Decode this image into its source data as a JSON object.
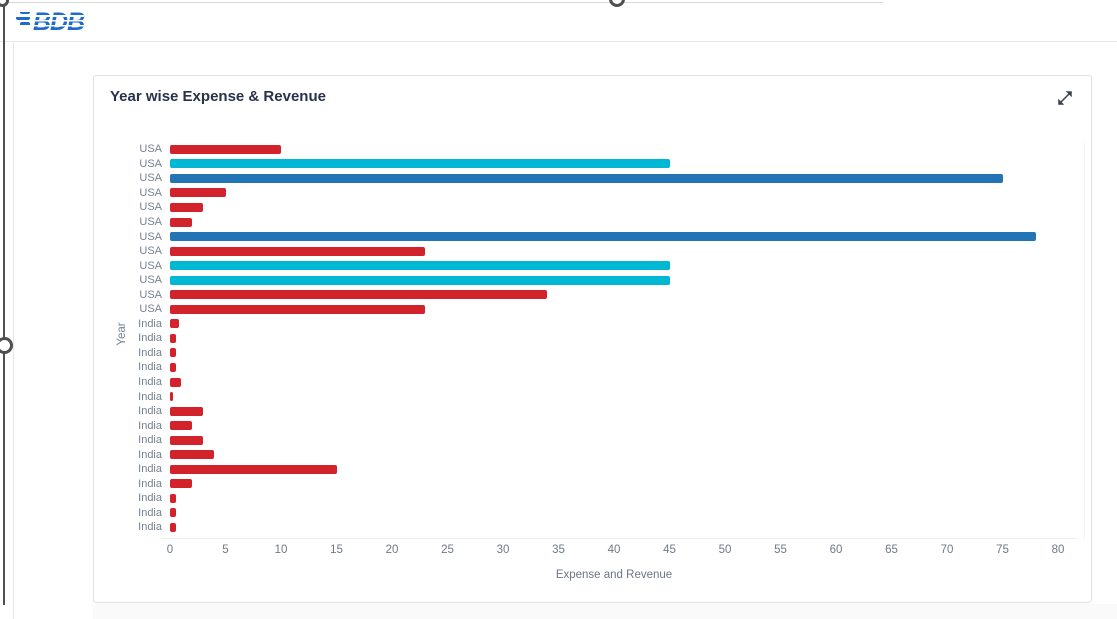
{
  "header": {
    "logo_text": "BDB"
  },
  "card": {
    "title": "Year wise Expense & Revenue",
    "expand_icon": "expand-arrows-icon"
  },
  "chart_data": {
    "type": "bar",
    "orientation": "horizontal",
    "title": "Year wise Expense & Revenue",
    "xlabel": "Expense and Revenue",
    "ylabel": "Year",
    "xlim": [
      0,
      80
    ],
    "xticks": [
      0,
      5,
      10,
      15,
      20,
      25,
      30,
      35,
      40,
      45,
      50,
      55,
      60,
      65,
      70,
      75,
      80
    ],
    "grid": false,
    "legend_position": "none",
    "colors": {
      "red": "#d2232d",
      "cyan": "#00b8d4",
      "blue": "#2374b5"
    },
    "points": [
      {
        "category": "USA",
        "value": 10,
        "color": "red"
      },
      {
        "category": "USA",
        "value": 45,
        "color": "cyan"
      },
      {
        "category": "USA",
        "value": 75,
        "color": "blue"
      },
      {
        "category": "USA",
        "value": 5,
        "color": "red"
      },
      {
        "category": "USA",
        "value": 3,
        "color": "red"
      },
      {
        "category": "USA",
        "value": 2,
        "color": "red"
      },
      {
        "category": "USA",
        "value": 78,
        "color": "blue"
      },
      {
        "category": "USA",
        "value": 23,
        "color": "red"
      },
      {
        "category": "USA",
        "value": 45,
        "color": "cyan"
      },
      {
        "category": "USA",
        "value": 45,
        "color": "cyan"
      },
      {
        "category": "USA",
        "value": 34,
        "color": "red"
      },
      {
        "category": "USA",
        "value": 23,
        "color": "red"
      },
      {
        "category": "India",
        "value": 0.8,
        "color": "red"
      },
      {
        "category": "India",
        "value": 0.5,
        "color": "red"
      },
      {
        "category": "India",
        "value": 0.5,
        "color": "red"
      },
      {
        "category": "India",
        "value": 0.5,
        "color": "red"
      },
      {
        "category": "India",
        "value": 1,
        "color": "red"
      },
      {
        "category": "India",
        "value": 0.3,
        "color": "red"
      },
      {
        "category": "India",
        "value": 3,
        "color": "red"
      },
      {
        "category": "India",
        "value": 2,
        "color": "red"
      },
      {
        "category": "India",
        "value": 3,
        "color": "red"
      },
      {
        "category": "India",
        "value": 4,
        "color": "red"
      },
      {
        "category": "India",
        "value": 15,
        "color": "red"
      },
      {
        "category": "India",
        "value": 2,
        "color": "red"
      },
      {
        "category": "India",
        "value": 0.5,
        "color": "red"
      },
      {
        "category": "India",
        "value": 0.5,
        "color": "red"
      },
      {
        "category": "India",
        "value": 0.5,
        "color": "red"
      }
    ]
  }
}
